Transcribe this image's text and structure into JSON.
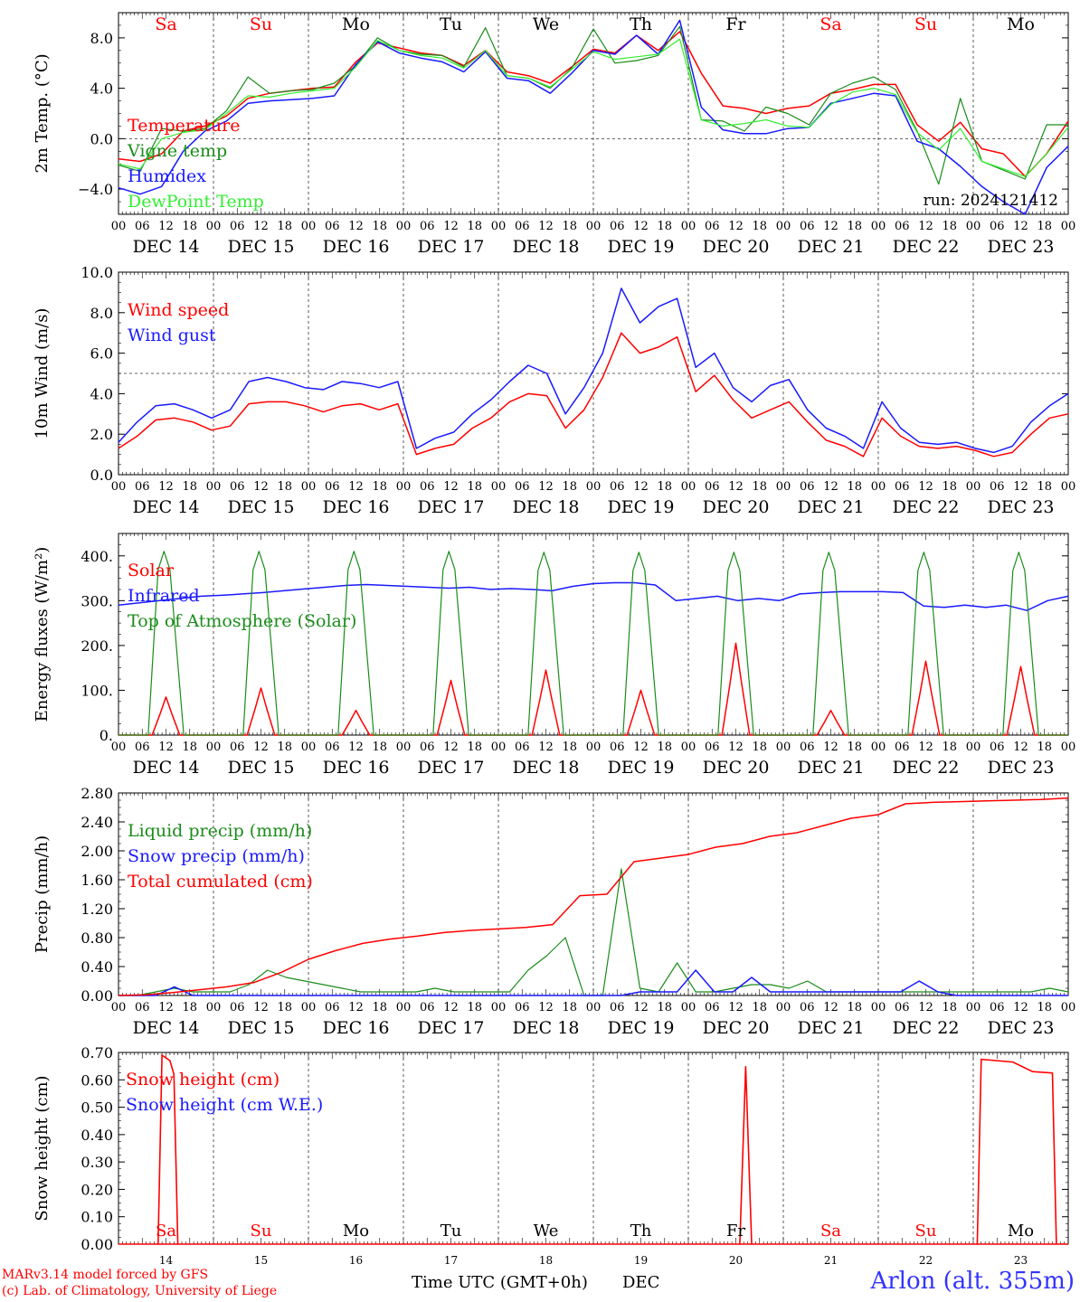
{
  "footer": {
    "credit_line1": "MARv3.14 model forced by GFS",
    "credit_line2": "(c) Lab. of Climatology, University of Liege",
    "station": "Arlon (alt. 355m)"
  },
  "colors": {
    "red": "#ff0000",
    "green": "#1a8c1a",
    "blue": "#1a1aff",
    "lightgreen": "#33ee33",
    "black": "#000000"
  },
  "chart_data": [
    {
      "type": "line",
      "ylabel": "2m Temp. (°C)",
      "ylim": [
        -6,
        10
      ],
      "yticks": [
        -4,
        0,
        4,
        8
      ],
      "ytick_labels": [
        "−4.0",
        "0.0",
        "4.0",
        "8.0"
      ],
      "dashed_hline": 0,
      "grid": "vertical dashed lines at day boundaries",
      "weekdays_top": [
        "Sa",
        "Su",
        "Mo",
        "Tu",
        "We",
        "Th",
        "Fr",
        "Sa",
        "Su",
        "Mo"
      ],
      "x_hours": "0..240 step 6 (hours since Dec 14 00 UTC)",
      "x_tick_labels": [
        "00",
        "06",
        "12",
        "18"
      ],
      "day_labels": [
        "DEC 14",
        "DEC 15",
        "DEC 16",
        "DEC 17",
        "DEC 18",
        "DEC 19",
        "DEC 20",
        "DEC 21",
        "DEC 22",
        "DEC 23"
      ],
      "annotation": "run: 2024121412",
      "legend": "left",
      "series": [
        {
          "name": "Temperature",
          "color": "red",
          "values": [
            -1.6,
            -1.8,
            -1.2,
            0.6,
            1.0,
            1.8,
            3.2,
            3.6,
            3.8,
            4.0,
            4.1,
            6.1,
            7.6,
            7.2,
            6.8,
            6.6,
            5.8,
            7.0,
            5.3,
            5.0,
            4.4,
            5.7,
            7.1,
            6.8,
            8.2,
            7.0,
            8.5,
            5.2,
            2.6,
            2.4,
            2.0,
            2.4,
            2.6,
            3.6,
            3.9,
            4.3,
            4.3,
            1.1,
            -0.2,
            1.3,
            -0.8,
            -1.2,
            -3.0,
            -1.2,
            1.4
          ]
        },
        {
          "name": "Vigne temp",
          "color": "green",
          "values": [
            -2.1,
            -2.6,
            0.8,
            0.6,
            0.8,
            2.2,
            4.9,
            3.6,
            3.8,
            3.9,
            4.4,
            5.8,
            8.0,
            7.0,
            6.7,
            6.6,
            5.7,
            8.8,
            5.0,
            4.8,
            4.0,
            5.6,
            8.7,
            6.0,
            6.2,
            6.6,
            8.9,
            1.5,
            1.4,
            0.6,
            2.5,
            2.0,
            1.1,
            3.6,
            4.4,
            4.9,
            3.9,
            0.6,
            -3.6,
            3.2,
            -1.8,
            -2.5,
            -3.2,
            1.1,
            1.1
          ]
        },
        {
          "name": "Humidex",
          "color": "blue",
          "values": [
            -3.9,
            -4.4,
            -3.8,
            -1.0,
            0.6,
            1.4,
            2.8,
            3.0,
            3.1,
            3.2,
            3.4,
            5.9,
            7.7,
            6.8,
            6.4,
            6.1,
            5.3,
            6.9,
            4.8,
            4.6,
            3.6,
            5.2,
            7.0,
            6.7,
            8.2,
            6.7,
            9.4,
            2.5,
            0.7,
            0.4,
            0.4,
            0.8,
            0.9,
            2.8,
            3.2,
            3.6,
            3.4,
            -0.2,
            -0.8,
            -2.2,
            -3.8,
            -5.0,
            -6.0,
            -2.3,
            -0.6
          ]
        },
        {
          "name": "DewPoint Temp",
          "color": "lightgreen",
          "values": [
            -2.0,
            -2.4,
            0.0,
            0.5,
            0.7,
            2.0,
            3.4,
            3.3,
            3.6,
            3.8,
            4.0,
            5.7,
            7.8,
            7.0,
            6.6,
            6.4,
            5.6,
            7.0,
            5.0,
            4.8,
            4.1,
            5.5,
            6.9,
            6.3,
            6.5,
            6.7,
            7.9,
            1.5,
            1.0,
            1.2,
            1.5,
            1.0,
            0.9,
            2.7,
            3.7,
            4.0,
            3.5,
            0.5,
            -0.9,
            0.8,
            -1.8,
            -2.4,
            -3.0,
            -1.2,
            0.9
          ]
        }
      ]
    },
    {
      "type": "line",
      "ylabel": "10m Wind (m/s)",
      "ylim": [
        0,
        10
      ],
      "yticks": [
        0,
        2,
        4,
        6,
        8,
        10
      ],
      "ytick_labels": [
        "0.0",
        "2.0",
        "4.0",
        "6.0",
        "8.0",
        "10.0"
      ],
      "dashed_hline": 5,
      "x_hours": "0..240 step 6",
      "x_tick_labels": [
        "00",
        "06",
        "12",
        "18"
      ],
      "day_labels": [
        "DEC 14",
        "DEC 15",
        "DEC 16",
        "DEC 17",
        "DEC 18",
        "DEC 19",
        "DEC 20",
        "DEC 21",
        "DEC 22",
        "DEC 23"
      ],
      "legend": "left",
      "series": [
        {
          "name": "Wind speed",
          "color": "red",
          "values": [
            1.3,
            1.9,
            2.7,
            2.8,
            2.6,
            2.2,
            2.4,
            3.5,
            3.6,
            3.6,
            3.4,
            3.1,
            3.4,
            3.5,
            3.2,
            3.5,
            1.0,
            1.3,
            1.5,
            2.3,
            2.8,
            3.6,
            4.0,
            3.9,
            2.3,
            3.2,
            4.8,
            7.0,
            6.0,
            6.3,
            6.8,
            4.1,
            4.9,
            3.7,
            2.8,
            3.2,
            3.6,
            2.6,
            1.7,
            1.4,
            0.9,
            2.8,
            1.9,
            1.4,
            1.3,
            1.4,
            1.2,
            0.9,
            1.1,
            2.0,
            2.8,
            3.0
          ]
        },
        {
          "name": "Wind gust",
          "color": "blue",
          "values": [
            1.6,
            2.6,
            3.4,
            3.5,
            3.2,
            2.8,
            3.2,
            4.6,
            4.8,
            4.6,
            4.3,
            4.2,
            4.6,
            4.5,
            4.3,
            4.6,
            1.3,
            1.8,
            2.1,
            3.0,
            3.7,
            4.6,
            5.4,
            5.0,
            3.0,
            4.3,
            6.0,
            9.2,
            7.5,
            8.3,
            8.7,
            5.3,
            6.0,
            4.3,
            3.6,
            4.4,
            4.7,
            3.2,
            2.3,
            1.9,
            1.3,
            3.6,
            2.3,
            1.6,
            1.5,
            1.6,
            1.3,
            1.1,
            1.4,
            2.6,
            3.4,
            4.0
          ]
        }
      ]
    },
    {
      "type": "line",
      "ylabel": "Energy fluxes (W/m²)",
      "ylim": [
        0,
        450
      ],
      "yticks": [
        0,
        100,
        200,
        300,
        400
      ],
      "ytick_labels": [
        "0.",
        "100.",
        "200.",
        "300.",
        "400."
      ],
      "x_hours": "0..240 step 6",
      "x_tick_labels": [
        "00",
        "06",
        "12",
        "18"
      ],
      "day_labels": [
        "DEC 14",
        "DEC 15",
        "DEC 16",
        "DEC 17",
        "DEC 18",
        "DEC 19",
        "DEC 20",
        "DEC 21",
        "DEC 22",
        "DEC 23"
      ],
      "legend": "left",
      "series": [
        {
          "name": "Solar",
          "color": "red",
          "daily_peak": [
            85,
            105,
            55,
            122,
            145,
            100,
            205,
            55,
            165,
            153
          ]
        },
        {
          "name": "Infrared",
          "color": "blue",
          "values": [
            290,
            295,
            300,
            305,
            310,
            312,
            315,
            318,
            322,
            326,
            330,
            334,
            336,
            334,
            332,
            330,
            328,
            330,
            325,
            327,
            325,
            322,
            332,
            338,
            340,
            340,
            335,
            300,
            305,
            310,
            300,
            305,
            300,
            315,
            318,
            320,
            320,
            320,
            318,
            288,
            285,
            290,
            285,
            290,
            278,
            300,
            310
          ]
        },
        {
          "name": "Top of Atmosphere (Solar)",
          "color": "green",
          "daily_peak": [
            410,
            410,
            410,
            410,
            408,
            408,
            408,
            408,
            408,
            408
          ]
        }
      ]
    },
    {
      "type": "line",
      "ylabel": "Precip (mm/h)",
      "ylim": [
        0,
        2.8
      ],
      "yticks": [
        0,
        0.4,
        0.8,
        1.2,
        1.6,
        2.0,
        2.4,
        2.8
      ],
      "ytick_labels": [
        "0.00",
        "0.40",
        "0.80",
        "1.20",
        "1.60",
        "2.00",
        "2.40",
        "2.80"
      ],
      "x_hours": "0..240 step 6",
      "x_tick_labels": [
        "00",
        "06",
        "12",
        "18"
      ],
      "day_labels": [
        "DEC 14",
        "DEC 15",
        "DEC 16",
        "DEC 17",
        "DEC 18",
        "DEC 19",
        "DEC 20",
        "DEC 21",
        "DEC 22",
        "DEC 23"
      ],
      "legend": "left",
      "series": [
        {
          "name": "Liquid precip (mm/h)",
          "color": "green",
          "values": [
            0,
            0,
            0.05,
            0.1,
            0.05,
            0.05,
            0.05,
            0.15,
            0.35,
            0.25,
            0.2,
            0.15,
            0.1,
            0.05,
            0.05,
            0.05,
            0.05,
            0.1,
            0.05,
            0.05,
            0.05,
            0.05,
            0.35,
            0.55,
            0.8,
            0,
            0,
            1.75,
            0.1,
            0.05,
            0.45,
            0.05,
            0.05,
            0.1,
            0.15,
            0.15,
            0.1,
            0.2,
            0.05,
            0.05,
            0.05,
            0.05,
            0.05,
            0.05,
            0.05,
            0.05,
            0.05,
            0.05,
            0.05,
            0.05,
            0.1,
            0.05
          ]
        },
        {
          "name": "Snow precip (mm/h)",
          "color": "blue",
          "values": [
            0,
            0,
            0,
            0.12,
            0,
            0,
            0,
            0,
            0,
            0,
            0,
            0,
            0,
            0,
            0,
            0,
            0,
            0,
            0,
            0,
            0,
            0,
            0,
            0,
            0,
            0,
            0,
            0,
            0.05,
            0.05,
            0.05,
            0.35,
            0.05,
            0.05,
            0.25,
            0.05,
            0.05,
            0.05,
            0.05,
            0.05,
            0.05,
            0.05,
            0.05,
            0.2,
            0.05,
            0,
            0,
            0,
            0,
            0,
            0,
            0
          ]
        },
        {
          "name": "Total cumulated (cm)",
          "color": "red",
          "values": [
            0,
            0.01,
            0.04,
            0.08,
            0.12,
            0.18,
            0.32,
            0.5,
            0.62,
            0.72,
            0.78,
            0.82,
            0.87,
            0.9,
            0.92,
            0.94,
            0.98,
            1.38,
            1.4,
            1.85,
            1.9,
            1.95,
            2.05,
            2.1,
            2.2,
            2.25,
            2.35,
            2.45,
            2.5,
            2.65,
            2.67,
            2.68,
            2.69,
            2.7,
            2.71,
            2.73
          ]
        }
      ]
    },
    {
      "type": "line",
      "ylabel": "Snow height (cm)",
      "ylim": [
        0,
        0.7
      ],
      "yticks": [
        0,
        0.1,
        0.2,
        0.3,
        0.4,
        0.5,
        0.6,
        0.7
      ],
      "ytick_labels": [
        "0.00",
        "0.10",
        "0.20",
        "0.30",
        "0.40",
        "0.50",
        "0.60",
        "0.70"
      ],
      "xlabel": "Time UTC (GMT+0h)",
      "xlabel_suffix": "DEC",
      "weekdays_bottom": [
        "Sa",
        "Su",
        "Mo",
        "Tu",
        "We",
        "Th",
        "Fr",
        "Sa",
        "Su",
        "Mo"
      ],
      "day_numbers": [
        "14",
        "15",
        "16",
        "17",
        "18",
        "19",
        "20",
        "21",
        "22",
        "23"
      ],
      "legend": "left",
      "series": [
        {
          "name": "Snow height (cm)",
          "color": "red",
          "segments": [
            [
              [
                10,
                0
              ],
              [
                11,
                0.69
              ],
              [
                13,
                0.67
              ],
              [
                14,
                0.62
              ],
              [
                15,
                0
              ]
            ],
            [
              [
                157,
                0
              ],
              [
                158.5,
                0.65
              ],
              [
                160,
                0
              ]
            ],
            [
              [
                217,
                0
              ],
              [
                218,
                0.675
              ],
              [
                226,
                0.665
              ],
              [
                231,
                0.63
              ],
              [
                236,
                0.625
              ],
              [
                237,
                0
              ]
            ]
          ]
        },
        {
          "name": "Snow height (cm W.E.)",
          "color": "blue"
        }
      ]
    }
  ]
}
